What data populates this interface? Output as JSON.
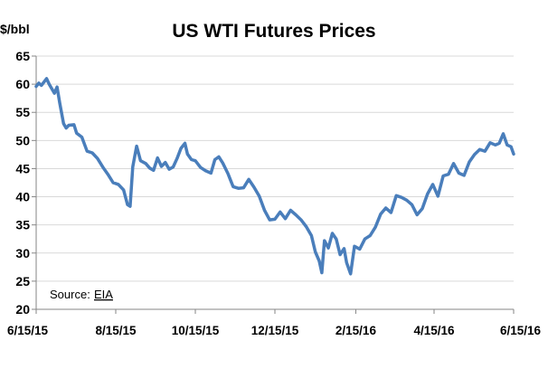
{
  "chart_data": {
    "type": "line",
    "title": "US WTI Futures Prices",
    "y_unit_label": "$/bbl",
    "ylim": [
      20,
      65
    ],
    "y_ticks": [
      "20",
      "25",
      "30",
      "35",
      "40",
      "45",
      "50",
      "55",
      "60",
      "65"
    ],
    "x_tick_labels": [
      "6/15/15",
      "8/15/15",
      "10/15/15",
      "12/15/15",
      "2/15/16",
      "4/15/16",
      "6/15/16"
    ],
    "x_tick_dates": [
      "2015-06-15",
      "2015-08-15",
      "2015-10-15",
      "2015-12-15",
      "2016-02-15",
      "2016-04-15",
      "2016-06-15"
    ],
    "xlim": [
      "2015-06-15",
      "2016-06-15"
    ],
    "grid": "horizontal",
    "line_color": "#4a7ebb",
    "annotation": {
      "label": "Source: ",
      "link_text": "EIA"
    },
    "series": [
      {
        "x": [
          "2015-06-15",
          "2015-06-17",
          "2015-06-19",
          "2015-06-23",
          "2015-06-25",
          "2015-06-29",
          "2015-07-01",
          "2015-07-03",
          "2015-07-06",
          "2015-07-08",
          "2015-07-10",
          "2015-07-14",
          "2015-07-16",
          "2015-07-20",
          "2015-07-24",
          "2015-07-28",
          "2015-08-01",
          "2015-08-05",
          "2015-08-09",
          "2015-08-13",
          "2015-08-17",
          "2015-08-21",
          "2015-08-24",
          "2015-08-26",
          "2015-08-28",
          "2015-08-31",
          "2015-09-03",
          "2015-09-07",
          "2015-09-10",
          "2015-09-13",
          "2015-09-16",
          "2015-09-19",
          "2015-09-22",
          "2015-09-25",
          "2015-09-28",
          "2015-10-01",
          "2015-10-04",
          "2015-10-07",
          "2015-10-09",
          "2015-10-12",
          "2015-10-15",
          "2015-10-19",
          "2015-10-23",
          "2015-10-27",
          "2015-10-30",
          "2015-11-02",
          "2015-11-05",
          "2015-11-09",
          "2015-11-13",
          "2015-11-17",
          "2015-11-21",
          "2015-11-25",
          "2015-11-29",
          "2015-12-03",
          "2015-12-07",
          "2015-12-11",
          "2015-12-15",
          "2015-12-19",
          "2015-12-23",
          "2015-12-27",
          "2015-12-31",
          "2016-01-04",
          "2016-01-08",
          "2016-01-12",
          "2016-01-15",
          "2016-01-18",
          "2016-01-20",
          "2016-01-22",
          "2016-01-25",
          "2016-01-28",
          "2016-01-31",
          "2016-02-03",
          "2016-02-06",
          "2016-02-08",
          "2016-02-11",
          "2016-02-14",
          "2016-02-18",
          "2016-02-22",
          "2016-02-26",
          "2016-03-01",
          "2016-03-05",
          "2016-03-09",
          "2016-03-13",
          "2016-03-17",
          "2016-03-21",
          "2016-03-25",
          "2016-03-29",
          "2016-04-02",
          "2016-04-06",
          "2016-04-10",
          "2016-04-14",
          "2016-04-18",
          "2016-04-22",
          "2016-04-26",
          "2016-04-30",
          "2016-05-04",
          "2016-05-08",
          "2016-05-12",
          "2016-05-16",
          "2016-05-20",
          "2016-05-24",
          "2016-05-28",
          "2016-06-01",
          "2016-06-04",
          "2016-06-07",
          "2016-06-10",
          "2016-06-13",
          "2016-06-15"
        ],
        "values": [
          59.6,
          60.2,
          59.8,
          61.0,
          60.0,
          58.4,
          59.5,
          56.7,
          53.0,
          52.2,
          52.7,
          52.8,
          51.3,
          50.6,
          48.1,
          47.8,
          46.8,
          45.3,
          44.0,
          42.5,
          42.2,
          41.2,
          38.6,
          38.3,
          45.3,
          49.0,
          46.4,
          45.9,
          45.1,
          44.7,
          46.9,
          45.4,
          46.1,
          44.9,
          45.3,
          46.8,
          48.6,
          49.5,
          47.6,
          46.6,
          46.4,
          45.2,
          44.6,
          44.2,
          46.6,
          47.1,
          46.0,
          44.1,
          41.8,
          41.5,
          41.6,
          43.1,
          41.7,
          40.1,
          37.6,
          35.9,
          36.0,
          37.3,
          36.1,
          37.6,
          36.8,
          35.9,
          34.7,
          33.1,
          30.2,
          28.6,
          26.5,
          32.2,
          30.9,
          33.5,
          32.5,
          29.7,
          30.8,
          28.3,
          26.3,
          31.2,
          30.7,
          32.5,
          33.1,
          34.6,
          36.9,
          38.0,
          37.2,
          40.2,
          39.9,
          39.4,
          38.6,
          36.8,
          37.9,
          40.5,
          42.2,
          40.1,
          43.7,
          44.0,
          45.9,
          44.2,
          43.8,
          46.2,
          47.5,
          48.4,
          48.1,
          49.6,
          49.2,
          49.5,
          51.2,
          49.2,
          48.9,
          47.6
        ]
      }
    ]
  }
}
